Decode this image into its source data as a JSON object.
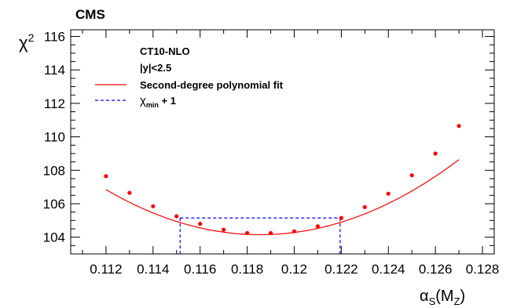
{
  "chart_data": {
    "type": "scatter",
    "experiment_label": "CMS",
    "ylabel_symbol": "χ",
    "ylabel_power": "2",
    "xlabel_symbol": "α",
    "xlabel_sub": "S",
    "xlabel_arg_open": "(M",
    "xlabel_arg_sub": "Z",
    "xlabel_arg_close": ")",
    "xlim": [
      0.1105,
      0.1285
    ],
    "ylim": [
      103.0,
      116.4
    ],
    "x_ticks": [
      0.112,
      0.114,
      0.116,
      0.118,
      0.12,
      0.122,
      0.124,
      0.126,
      0.128
    ],
    "x_tick_labels": [
      "0.112",
      "0.114",
      "0.116",
      "0.118",
      "0.12",
      "0.122",
      "0.124",
      "0.126",
      "0.128"
    ],
    "y_ticks": [
      104,
      106,
      108,
      110,
      112,
      114,
      116
    ],
    "y_tick_labels": [
      "104",
      "106",
      "108",
      "110",
      "112",
      "114",
      "116"
    ],
    "legend": {
      "header_line1": "CT10-NLO",
      "header_line2": "|y|<2.5",
      "fit_label": "Second-degree polynomial fit",
      "band_label_symbol": "χ",
      "band_label_sub": "min",
      "band_label_rest": " + 1"
    },
    "series": [
      {
        "kind": "points",
        "color": "#ff0000",
        "x": [
          0.112,
          0.113,
          0.114,
          0.115,
          0.116,
          0.117,
          0.118,
          0.119,
          0.12,
          0.121,
          0.122,
          0.123,
          0.124,
          0.125,
          0.126,
          0.127
        ],
        "y": [
          107.65,
          106.65,
          105.85,
          105.25,
          104.8,
          104.45,
          104.25,
          104.25,
          104.35,
          104.65,
          105.15,
          105.8,
          106.6,
          107.7,
          109.0,
          110.65
        ]
      },
      {
        "kind": "fit",
        "color": "#ff0000",
        "coefficients": {
          "a": 104.15,
          "b": 62830,
          "x0": 0.11855
        },
        "x_range": [
          0.112,
          0.127
        ]
      },
      {
        "kind": "band",
        "color": "#0000ff",
        "y_level": 105.15,
        "x_low": 0.11515,
        "x_high": 0.12195
      }
    ]
  }
}
